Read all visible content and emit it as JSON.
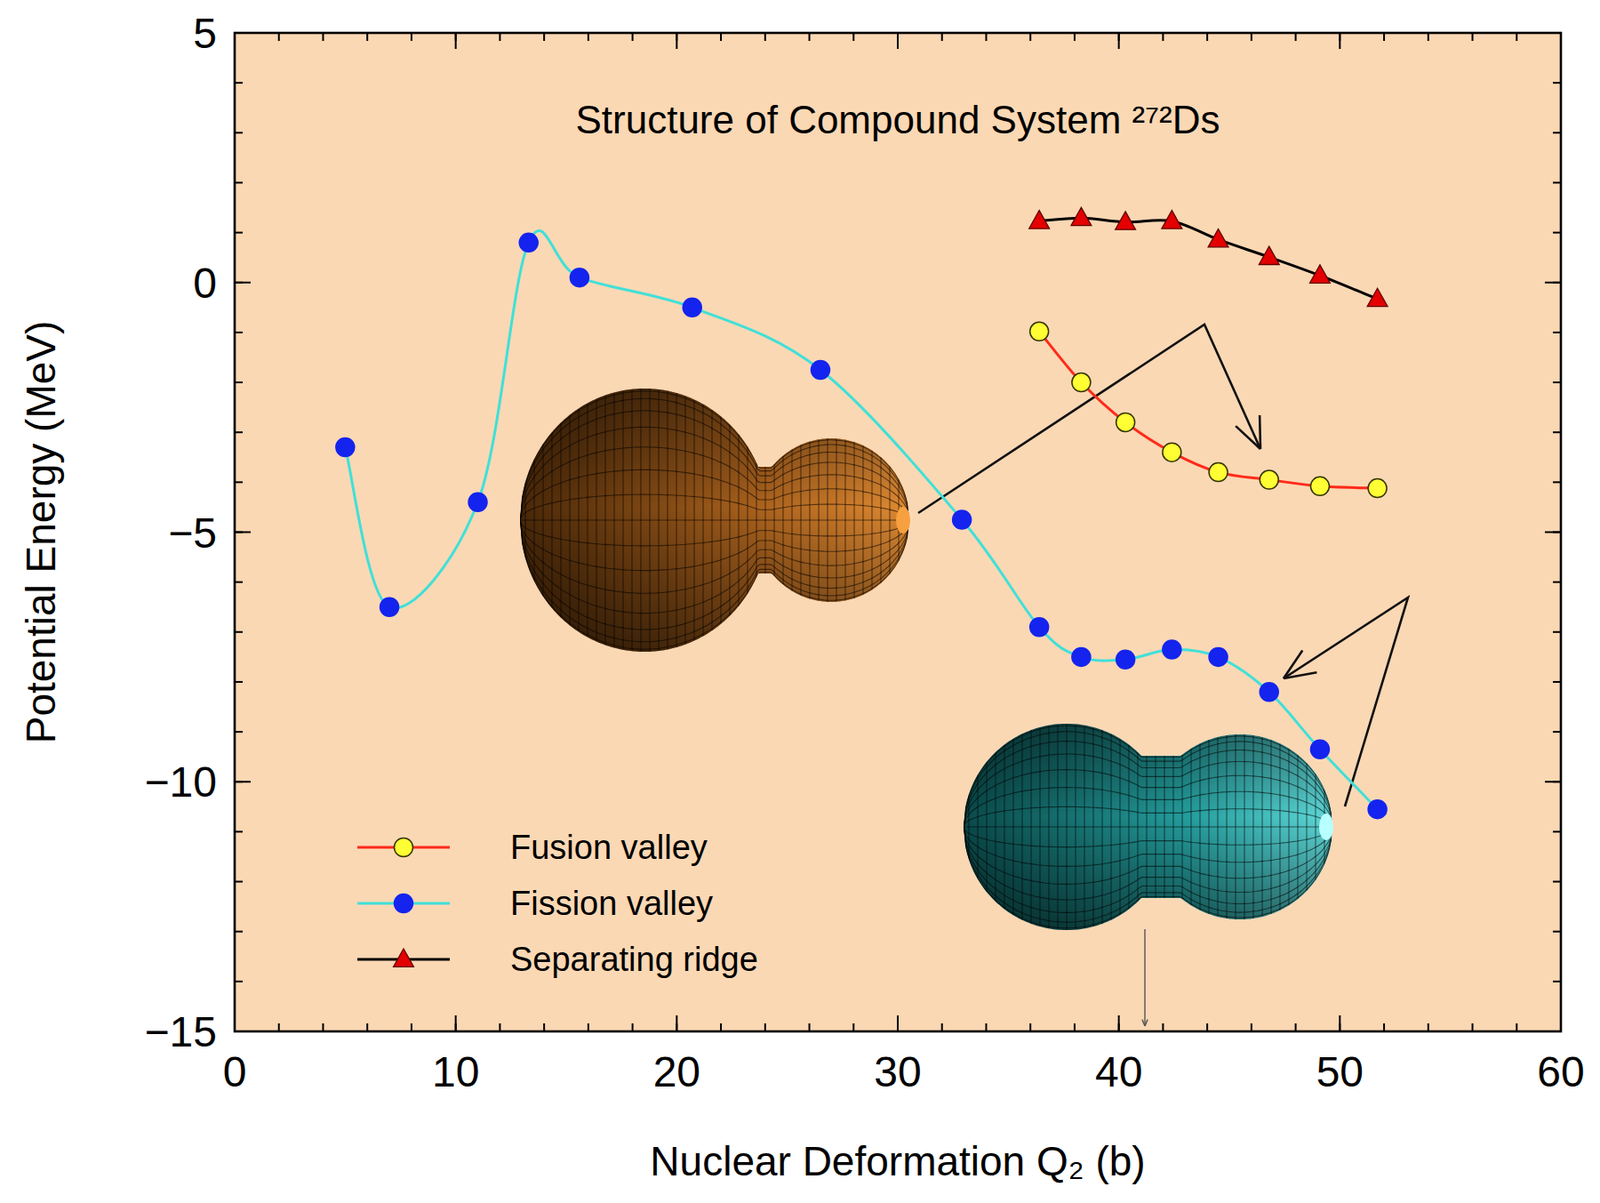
{
  "chart_data": {
    "type": "line",
    "title": "Structure of Compound System ²⁷²Ds",
    "x_label": "Nuclear Deformation Q₂ (b)",
    "y_label": "Potential Energy (MeV)",
    "xlim": [
      0,
      60
    ],
    "ylim": [
      -15,
      5
    ],
    "xticks": [
      0,
      10,
      20,
      30,
      40,
      50,
      60
    ],
    "yticks": [
      {
        "value": -15,
        "label": "−15"
      },
      {
        "value": -10,
        "label": "−10"
      },
      {
        "value": -5,
        "label": "−5"
      },
      0,
      5
    ],
    "grid": false,
    "legend": "lower left",
    "series": [
      {
        "name": "Fusion valley",
        "color": "#ff2a1a",
        "marker": "circle",
        "x": [
          36.4,
          38.3,
          40.3,
          42.4,
          44.5,
          46.8,
          49.1,
          51.7
        ],
        "values": [
          -0.98,
          -2.0,
          -2.8,
          -3.4,
          -3.8,
          -3.95,
          -4.08,
          -4.12
        ]
      },
      {
        "name": "Fission valley",
        "color": "#40e0d8",
        "marker": "circle",
        "x": [
          5,
          7,
          11,
          13.3,
          15.6,
          20.7,
          26.5,
          32.9,
          36.4,
          38.3,
          40.3,
          42.4,
          44.5,
          46.8,
          49.1,
          51.7
        ],
        "values": [
          -3.3,
          -6.5,
          -4.4,
          0.8,
          0.1,
          -0.5,
          -1.75,
          -4.75,
          -6.9,
          -7.5,
          -7.55,
          -7.35,
          -7.5,
          -8.2,
          -9.35,
          -10.55
        ]
      },
      {
        "name": "Separating ridge",
        "color": "#000000",
        "marker": "triangle",
        "x": [
          36.4,
          38.3,
          40.3,
          42.4,
          44.5,
          46.8,
          49.1,
          51.7
        ],
        "values": [
          1.23,
          1.29,
          1.21,
          1.23,
          0.86,
          0.51,
          0.14,
          -0.33
        ]
      }
    ]
  }
}
